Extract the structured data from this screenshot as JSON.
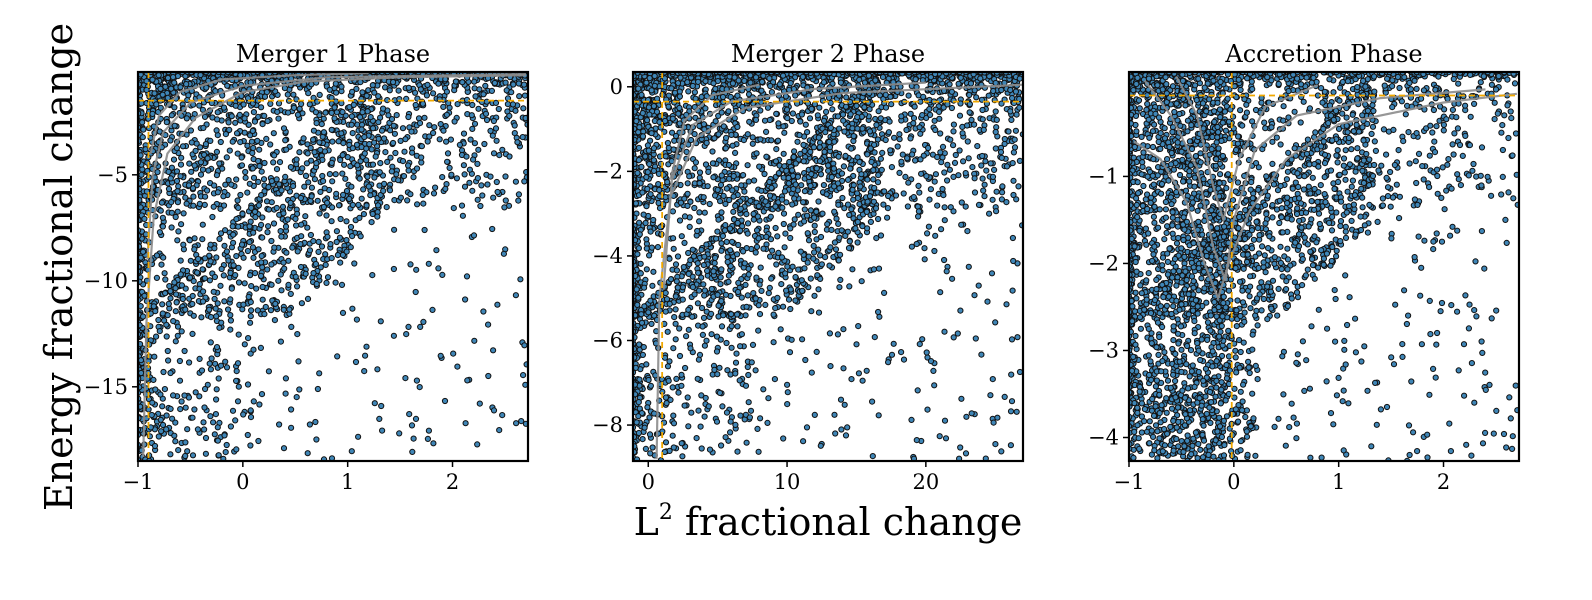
{
  "figure": {
    "ylabel": "Energy fractional change",
    "xlabel_base": "L",
    "xlabel_superscript": "2",
    "xlabel_rest": " fractional change"
  },
  "colors": {
    "marker_fill": "#3f86b7",
    "marker_edge": "#111111",
    "contour": "#8c8c8c",
    "reference_line": "#f0a800",
    "frame": "#000000"
  },
  "chart_data": [
    {
      "type": "scatter",
      "title": "Merger 1 Phase",
      "xlim": [
        -1,
        2.72
      ],
      "ylim": [
        -18.5,
        -0.15
      ],
      "xticks": [
        -1,
        0,
        1,
        2
      ],
      "xtick_labels": [
        "−1",
        "0",
        "1",
        "2"
      ],
      "yticks": [
        -5,
        -10,
        -15
      ],
      "ytick_labels": [
        "−5",
        "−10",
        "−15"
      ],
      "reference_lines": {
        "x": -0.9,
        "y": -1.5
      },
      "density": {
        "main_points": 2600,
        "sparse_points": 170,
        "scale": 2.6,
        "decay": 0.55,
        "line_spread": 0.045
      },
      "contours": [
        {
          "level": 1,
          "points": [
            [
              -0.95,
              -18.3
            ],
            [
              -0.92,
              -12
            ],
            [
              -0.85,
              -7
            ],
            [
              -0.72,
              -4
            ],
            [
              -0.45,
              -2.3
            ],
            [
              0,
              -1.1
            ],
            [
              0.6,
              -0.6
            ],
            [
              1.5,
              -0.4
            ],
            [
              2.7,
              -0.3
            ]
          ]
        },
        {
          "level": 2,
          "points": [
            [
              -0.91,
              -9
            ],
            [
              -0.86,
              -5
            ],
            [
              -0.76,
              -3
            ],
            [
              -0.5,
              -1.6
            ],
            [
              0,
              -0.8
            ],
            [
              0.8,
              -0.4
            ],
            [
              2.7,
              -0.25
            ]
          ]
        },
        {
          "level": 3,
          "points": [
            [
              -0.88,
              -4
            ],
            [
              -0.8,
              -2.2
            ],
            [
              -0.6,
              -1.1
            ],
            [
              -0.2,
              -0.5
            ],
            [
              0.5,
              -0.3
            ],
            [
              1.2,
              -0.2
            ]
          ]
        }
      ]
    },
    {
      "type": "scatter",
      "title": "Merger 2 Phase",
      "xlim": [
        -1.1,
        27
      ],
      "ylim": [
        -8.85,
        0.35
      ],
      "xticks": [
        0,
        10,
        20
      ],
      "xtick_labels": [
        "0",
        "10",
        "20"
      ],
      "yticks": [
        0,
        -2,
        -4,
        -6,
        -8
      ],
      "ytick_labels": [
        "0",
        "−2",
        "−4",
        "−6",
        "−8"
      ],
      "reference_lines": {
        "x": 1,
        "y": -0.35
      },
      "density": {
        "main_points": 3200,
        "sparse_points": 260,
        "scale": 9.0,
        "decay": 0.5,
        "line_spread": 0.04
      },
      "contours": [
        {
          "level": 1,
          "points": [
            [
              0.6,
              -8.8
            ],
            [
              0.8,
              -5
            ],
            [
              1.6,
              -2.6
            ],
            [
              3.5,
              -1.2
            ],
            [
              7,
              -0.5
            ],
            [
              14,
              -0.15
            ],
            [
              27,
              0.05
            ]
          ]
        },
        {
          "level": 2,
          "points": [
            [
              1.1,
              -4.8
            ],
            [
              1.7,
              -2.2
            ],
            [
              3.2,
              -0.9
            ],
            [
              6,
              -0.35
            ],
            [
              12,
              -0.05
            ],
            [
              20,
              0.1
            ]
          ]
        },
        {
          "level": 3,
          "points": [
            [
              1.6,
              -2.2
            ],
            [
              2.6,
              -0.8
            ],
            [
              4.6,
              -0.2
            ],
            [
              8,
              0.05
            ]
          ]
        }
      ]
    },
    {
      "type": "scatter",
      "title": "Accretion Phase",
      "xlim": [
        -1,
        2.72
      ],
      "ylim": [
        -4.27,
        0.2
      ],
      "xticks": [
        -1,
        0,
        1,
        2
      ],
      "xtick_labels": [
        "−1",
        "0",
        "1",
        "2"
      ],
      "yticks": [
        -1,
        -2,
        -3,
        -4
      ],
      "ytick_labels": [
        "−1",
        "−2",
        "−3",
        "−4"
      ],
      "reference_lines": {
        "x": -0.02,
        "y": -0.07
      },
      "density": {
        "main_points": 3300,
        "sparse_points": 220,
        "scale": 2.6,
        "decay": 0.5,
        "line_spread": 0.06
      },
      "contours": [
        {
          "level": 1,
          "points": [
            [
              -0.95,
              -0.6
            ],
            [
              -0.7,
              -0.8
            ],
            [
              -0.45,
              -1.3
            ],
            [
              -0.28,
              -2.0
            ],
            [
              -0.15,
              -2.4
            ],
            [
              -0.05,
              -2.0
            ],
            [
              0.15,
              -1.4
            ],
            [
              0.5,
              -0.8
            ],
            [
              1.0,
              -0.4
            ],
            [
              2.0,
              -0.15
            ],
            [
              2.7,
              -0.05
            ]
          ]
        },
        {
          "level": 2,
          "points": [
            [
              -0.85,
              0.1
            ],
            [
              -0.6,
              -0.3
            ],
            [
              -0.35,
              -0.9
            ],
            [
              -0.2,
              -1.8
            ],
            [
              -0.08,
              -2.2
            ],
            [
              0,
              -1.5
            ],
            [
              0.2,
              -0.7
            ],
            [
              0.6,
              -0.3
            ],
            [
              1.4,
              -0.1
            ],
            [
              2.4,
              0
            ]
          ]
        },
        {
          "level": 3,
          "points": [
            [
              -0.55,
              0.15
            ],
            [
              -0.35,
              -0.3
            ],
            [
              -0.2,
              -1.1
            ],
            [
              -0.1,
              -1.5
            ],
            [
              0.05,
              -0.8
            ],
            [
              0.3,
              -0.2
            ],
            [
              0.8,
              0.05
            ]
          ]
        }
      ]
    }
  ]
}
